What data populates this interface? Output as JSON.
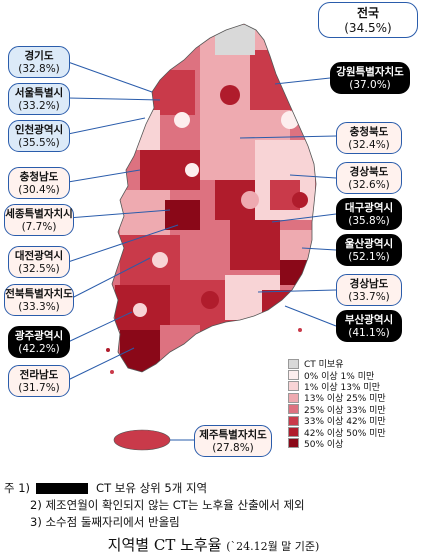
{
  "national": {
    "name": "전국",
    "value": "(34.5%)"
  },
  "regions": {
    "gyeonggi": {
      "name": "경기도",
      "value": "(32.8%)"
    },
    "seoul": {
      "name": "서울특별시",
      "value": "(33.2%)"
    },
    "incheon": {
      "name": "인천광역시",
      "value": "(35.5%)"
    },
    "chungnam": {
      "name": "충청남도",
      "value": "(30.4%)"
    },
    "sejong": {
      "name": "세종특별자치시",
      "value": "(7.7%)"
    },
    "daejeon": {
      "name": "대전광역시",
      "value": "(32.5%)"
    },
    "jeonbuk": {
      "name": "전북특별자치도",
      "value": "(33.3%)"
    },
    "gwangju": {
      "name": "광주광역시",
      "value": "(42.2%)"
    },
    "jeonnam": {
      "name": "전라남도",
      "value": "(31.7%)"
    },
    "gangwon": {
      "name": "강원특별자치도",
      "value": "(37.0%)"
    },
    "chungbuk": {
      "name": "충청북도",
      "value": "(32.4%)"
    },
    "gyeongbuk": {
      "name": "경상북도",
      "value": "(32.6%)"
    },
    "daegu": {
      "name": "대구광역시",
      "value": "(35.8%)"
    },
    "ulsan": {
      "name": "울산광역시",
      "value": "(52.1%)"
    },
    "gyeongnam": {
      "name": "경상남도",
      "value": "(33.7%)"
    },
    "busan": {
      "name": "부산광역시",
      "value": "(41.1%)"
    },
    "jeju": {
      "name": "제주특별자치도",
      "value": "(27.8%)"
    }
  },
  "legend": {
    "items": [
      {
        "label": "CT 미보유",
        "color": "#d9d9d9"
      },
      {
        "label": "0% 이상 1% 미만",
        "color": "#fdeeee"
      },
      {
        "label": "1% 이상 13% 미만",
        "color": "#f8d4d6"
      },
      {
        "label": "13% 이상 25% 미만",
        "color": "#eeaab0"
      },
      {
        "label": "25% 이상 33% 미만",
        "color": "#dd7280"
      },
      {
        "label": "33% 이상 42% 미만",
        "color": "#c93a4a"
      },
      {
        "label": "42% 이상 50% 미만",
        "color": "#b01c2c"
      },
      {
        "label": "50% 이상",
        "color": "#8a0818"
      }
    ]
  },
  "notes": {
    "n1_prefix": "주 1)",
    "n1_text": "CT 보유 상위 5개 지역",
    "n2": "2) 제조연월이 확인되지 않는 CT는 노후율 산출에서 제외",
    "n3": "3) 소수점 둘째자리에서 반올림"
  },
  "caption": {
    "main": "지역별 CT 노후율",
    "sub": "(`24.12월 말 기준)"
  }
}
